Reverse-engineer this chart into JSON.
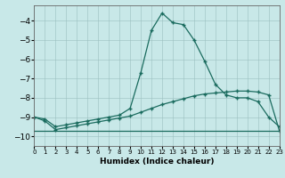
{
  "xlabel": "Humidex (Indice chaleur)",
  "xlim": [
    0,
    23
  ],
  "ylim": [
    -10.5,
    -3.2
  ],
  "yticks": [
    -10,
    -9,
    -8,
    -7,
    -6,
    -5,
    -4
  ],
  "xticks": [
    0,
    1,
    2,
    3,
    4,
    5,
    6,
    7,
    8,
    9,
    10,
    11,
    12,
    13,
    14,
    15,
    16,
    17,
    18,
    19,
    20,
    21,
    22,
    23
  ],
  "bg_color": "#c8e8e8",
  "line_color": "#1a6b5e",
  "line1_y": [
    -9.0,
    -9.1,
    -9.5,
    -9.4,
    -9.3,
    -9.2,
    -9.1,
    -9.0,
    -8.9,
    -8.55,
    -6.7,
    -4.5,
    -3.6,
    -4.1,
    -4.2,
    -5.0,
    -6.1,
    -7.3,
    -7.85,
    -8.0,
    -8.0,
    -8.2,
    -9.0,
    -9.5
  ],
  "line2_y": [
    -9.0,
    -9.2,
    -9.65,
    -9.55,
    -9.45,
    -9.35,
    -9.25,
    -9.15,
    -9.05,
    -8.95,
    -8.75,
    -8.55,
    -8.35,
    -8.2,
    -8.05,
    -7.9,
    -7.8,
    -7.75,
    -7.7,
    -7.65,
    -7.65,
    -7.7,
    -7.85,
    -9.7
  ],
  "line3_y": [
    -9.7,
    -9.7,
    -9.7,
    -9.7,
    -9.7,
    -9.7,
    -9.7,
    -9.7,
    -9.7,
    -9.7,
    -9.7,
    -9.7,
    -9.7,
    -9.7,
    -9.7,
    -9.7,
    -9.7,
    -9.7,
    -9.7,
    -9.7,
    -9.7,
    -9.7,
    -9.7,
    -9.7
  ]
}
